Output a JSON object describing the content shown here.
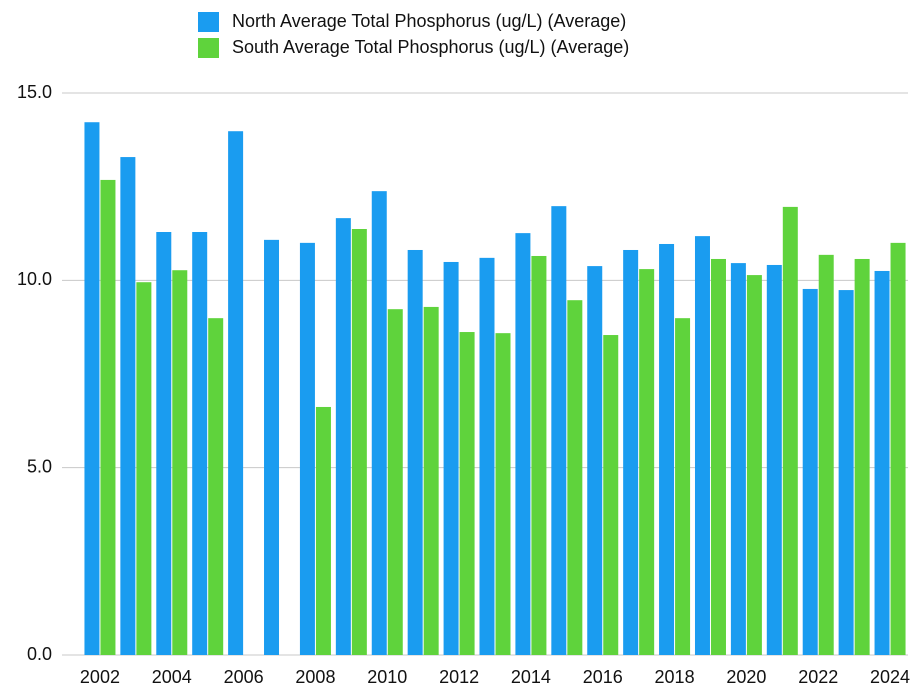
{
  "chart_data": {
    "type": "bar",
    "categories": [
      "2002",
      null,
      "2004",
      null,
      "2006",
      null,
      "2008",
      null,
      "2010",
      null,
      "2012",
      null,
      "2014",
      null,
      "2016",
      null,
      "2018",
      null,
      "2020",
      null,
      "2022",
      null,
      "2024"
    ],
    "series": [
      {
        "name": "North Average Total Phosphorus (ug/L) (Average)",
        "color": "#1a9cf0",
        "values": [
          14.22,
          13.29,
          11.29,
          11.29,
          13.98,
          11.08,
          11.0,
          11.66,
          12.38,
          10.81,
          10.49,
          10.6,
          11.26,
          11.98,
          10.38,
          10.81,
          10.97,
          11.18,
          10.46,
          10.41,
          9.77,
          9.74,
          10.25
        ]
      },
      {
        "name": "South Average Total Phosphorus (ug/L) (Average)",
        "color": "#5fd33c",
        "values": [
          12.68,
          9.95,
          10.27,
          8.99,
          null,
          null,
          6.62,
          11.37,
          9.23,
          9.29,
          8.62,
          8.59,
          10.65,
          9.47,
          8.54,
          10.3,
          8.99,
          10.57,
          10.14,
          11.96,
          10.68,
          10.57,
          11.0
        ]
      }
    ],
    "ylim": [
      0,
      15
    ],
    "yticks": [
      {
        "value": 0,
        "label": "0.0"
      },
      {
        "value": 5,
        "label": "5.0"
      },
      {
        "value": 10,
        "label": "10.0"
      },
      {
        "value": 15,
        "label": "15.0"
      }
    ],
    "grid": true,
    "legend": "top"
  }
}
